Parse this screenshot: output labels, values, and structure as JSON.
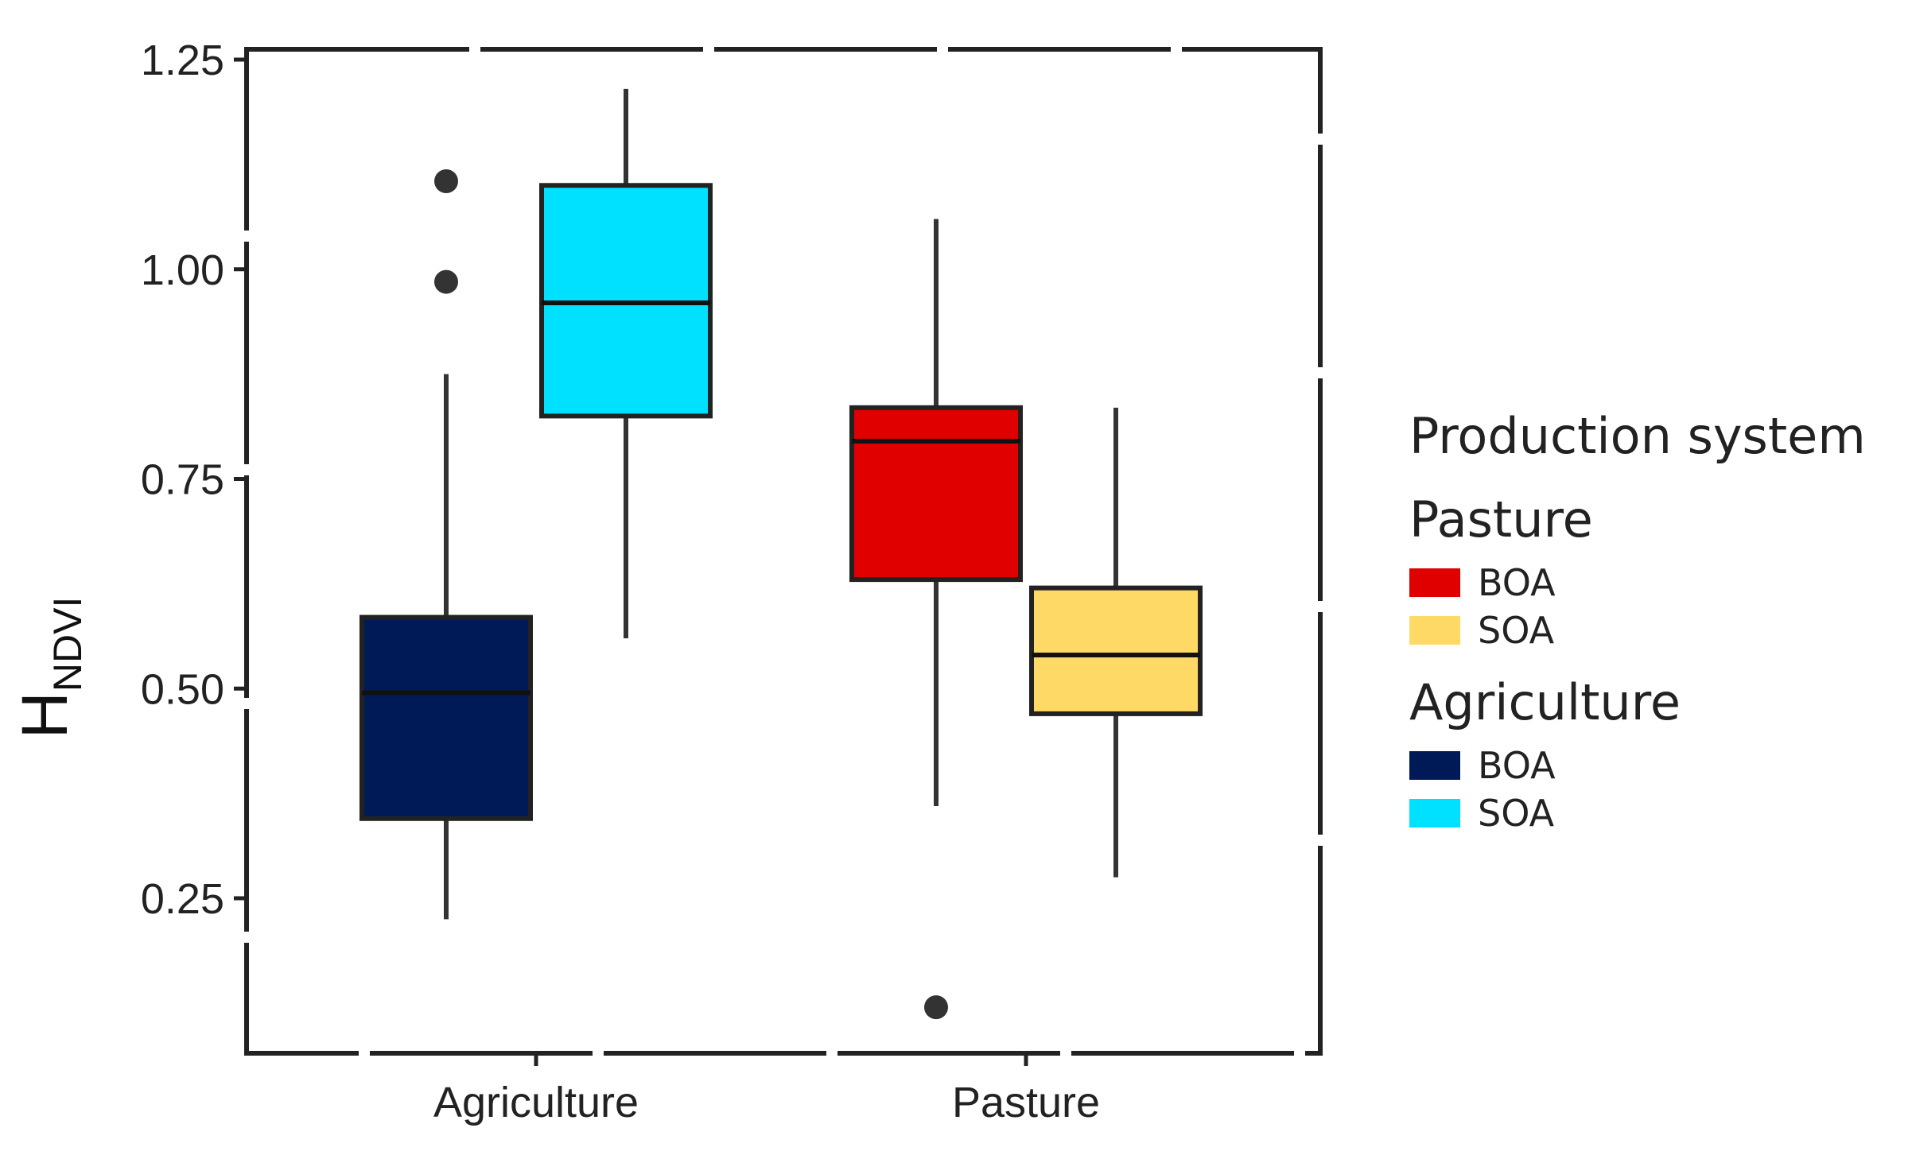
{
  "chart_data": {
    "type": "boxplot",
    "title": "",
    "xlabel": "",
    "ylabel_main": "H",
    "ylabel_sub": "NDVI",
    "ylim": [
      0.1,
      1.28
    ],
    "yticks": [
      "0.25",
      "0.50",
      "0.75",
      "1.00",
      "1.25"
    ],
    "ytick_values": [
      0.25,
      0.5,
      0.75,
      1.0,
      1.25
    ],
    "categories": [
      "Agriculture",
      "Pasture"
    ],
    "grid": false,
    "legend_position": "right",
    "boxes": [
      {
        "category": "Agriculture",
        "group": "Agriculture",
        "name": "BOA",
        "color": "#001A57",
        "whisker_low": 0.225,
        "q1": 0.345,
        "median": 0.495,
        "q3": 0.585,
        "whisker_high": 0.875,
        "outliers": [
          0.985,
          1.105
        ]
      },
      {
        "category": "Agriculture",
        "group": "Agriculture",
        "name": "SOA",
        "color": "#00E1FF",
        "whisker_low": 0.56,
        "q1": 0.825,
        "median": 0.96,
        "q3": 1.1,
        "whisker_high": 1.215,
        "outliers": []
      },
      {
        "category": "Pasture",
        "group": "Pasture",
        "name": "BOA",
        "color": "#E10000",
        "whisker_low": 0.36,
        "q1": 0.63,
        "median": 0.795,
        "q3": 0.835,
        "whisker_high": 1.06,
        "outliers": [
          0.12
        ]
      },
      {
        "category": "Pasture",
        "group": "Pasture",
        "name": "SOA",
        "color": "#FFD966",
        "whisker_low": 0.275,
        "q1": 0.47,
        "median": 0.54,
        "q3": 0.62,
        "whisker_high": 0.835,
        "outliers": []
      }
    ],
    "legend": {
      "title": "Production system",
      "groups": [
        {
          "name": "Pasture",
          "entries": [
            {
              "label": "BOA",
              "color": "#E10000"
            },
            {
              "label": "SOA",
              "color": "#FFD966"
            }
          ]
        },
        {
          "name": "Agriculture",
          "entries": [
            {
              "label": "BOA",
              "color": "#001A57"
            },
            {
              "label": "SOA",
              "color": "#00E1FF"
            }
          ]
        }
      ]
    }
  }
}
